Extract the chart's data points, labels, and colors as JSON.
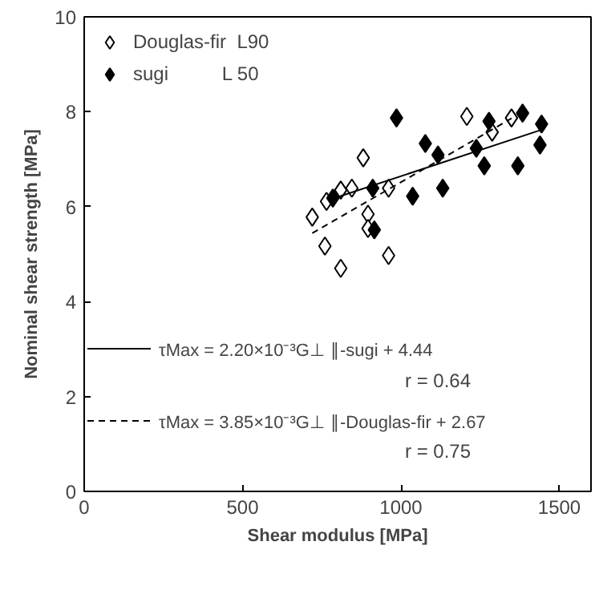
{
  "chart_data": {
    "type": "scatter",
    "xlabel": "Shear modulus [MPa]",
    "ylabel": "Nominal shear strength [MPa]",
    "xlim": [
      0,
      1600
    ],
    "xticks": [
      0,
      500,
      1000,
      1500
    ],
    "ylim": [
      0,
      10
    ],
    "yticks": [
      0,
      2,
      4,
      6,
      8,
      10
    ],
    "grid": false,
    "legend": "top left",
    "marker": "diamond",
    "series": [
      {
        "name": "Douglas-fir  L90",
        "color": "#ffffff",
        "x": [
          1208,
          1288,
          1349,
          881,
          961,
          845,
          810,
          765,
          720,
          896,
          896,
          760,
          961,
          810
        ],
        "values": [
          7.9,
          7.57,
          7.87,
          7.03,
          6.39,
          6.39,
          6.35,
          6.11,
          5.78,
          5.84,
          5.54,
          5.17,
          4.97,
          4.7
        ]
      },
      {
        "name": "sugi          L 50",
        "color": "#000000",
        "x": [
          986,
          1077,
          1117,
          1238,
          1278,
          1384,
          1444,
          1439,
          1263,
          1369,
          1132,
          1037,
          911,
          785,
          916
        ],
        "values": [
          7.87,
          7.33,
          7.09,
          7.23,
          7.8,
          7.97,
          7.74,
          7.3,
          6.86,
          6.86,
          6.39,
          6.22,
          6.39,
          6.18,
          5.51
        ]
      },
      {
        "type": "line",
        "name": "τMax = 2.20×10⁻³G⊥ ∥-sugi + 4.44",
        "color": "#000000",
        "marker": "none",
        "line_style": "solid",
        "x": [
          785,
          1444
        ],
        "values": [
          6.17,
          7.62
        ]
      },
      {
        "type": "line",
        "name": "τMax = 3.85×10⁻³G⊥ ∥-Douglas-fir + 2.67",
        "color": "#000000",
        "marker": "none",
        "line_style": "dashed",
        "x": [
          720,
          1349
        ],
        "values": [
          5.44,
          7.86
        ]
      }
    ],
    "annotations": [
      "r = 0.64",
      "r = 0.75"
    ]
  }
}
